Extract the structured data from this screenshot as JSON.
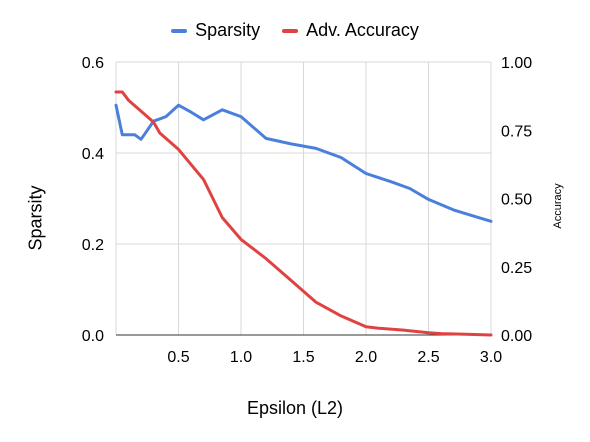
{
  "chart_data": {
    "type": "line",
    "title": "",
    "xlabel": "Epsilon (L2)",
    "ylabel": "Sparsity",
    "ylabel_right": "Accuracy",
    "xlim": [
      0.0,
      3.0
    ],
    "ylim": [
      0.0,
      0.6
    ],
    "ylim_right": [
      0.0,
      1.0
    ],
    "x_ticks": [
      "0.5",
      "1.0",
      "1.5",
      "2.0",
      "2.5",
      "3.0"
    ],
    "x_tick_values": [
      0.5,
      1.0,
      1.5,
      2.0,
      2.5,
      3.0
    ],
    "y_ticks": [
      "0.0",
      "0.2",
      "0.4",
      "0.6"
    ],
    "y_tick_values": [
      0.0,
      0.2,
      0.4,
      0.6
    ],
    "y_ticks_right": [
      "0.00",
      "0.25",
      "0.50",
      "0.75",
      "1.00"
    ],
    "y_tick_values_right": [
      0.0,
      0.25,
      0.5,
      0.75,
      1.0
    ],
    "grid": true,
    "legend_position": "top",
    "series": [
      {
        "name": "Sparsity",
        "axis": "left",
        "color": "#4a7fdc",
        "x": [
          0.0,
          0.05,
          0.1,
          0.15,
          0.2,
          0.25,
          0.3,
          0.4,
          0.5,
          0.6,
          0.7,
          0.85,
          1.0,
          1.2,
          1.4,
          1.6,
          1.8,
          2.0,
          2.2,
          2.35,
          2.5,
          2.7,
          2.9,
          3.0
        ],
        "y": [
          0.505,
          0.44,
          0.44,
          0.44,
          0.43,
          0.45,
          0.47,
          0.48,
          0.505,
          0.49,
          0.473,
          0.495,
          0.48,
          0.432,
          0.42,
          0.41,
          0.39,
          0.355,
          0.337,
          0.322,
          0.298,
          0.275,
          0.258,
          0.25
        ]
      },
      {
        "name": "Adv. Accuracy",
        "axis": "right",
        "color": "#e04242",
        "x": [
          0.0,
          0.05,
          0.1,
          0.2,
          0.3,
          0.35,
          0.5,
          0.7,
          0.85,
          1.0,
          1.2,
          1.4,
          1.6,
          1.8,
          2.0,
          2.1,
          2.3,
          2.5,
          2.6,
          2.8,
          3.0
        ],
        "y": [
          0.89,
          0.89,
          0.86,
          0.82,
          0.78,
          0.74,
          0.68,
          0.57,
          0.43,
          0.35,
          0.28,
          0.2,
          0.12,
          0.07,
          0.03,
          0.025,
          0.018,
          0.008,
          0.005,
          0.003,
          0.0
        ]
      }
    ]
  }
}
